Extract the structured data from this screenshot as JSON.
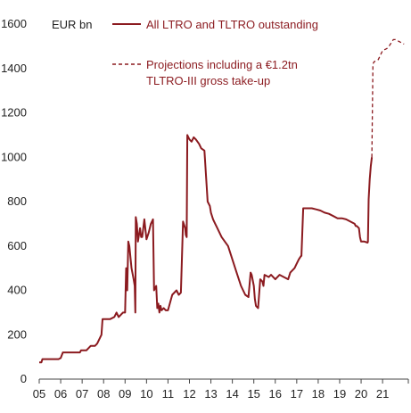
{
  "chart_data": {
    "type": "line",
    "ylabel": "EUR bn",
    "ylim": [
      0,
      1600
    ],
    "yticks": [
      0,
      200,
      400,
      600,
      800,
      1000,
      1200,
      1400,
      1600
    ],
    "xticks": [
      "05",
      "06",
      "07",
      "08",
      "09",
      "10",
      "11",
      "12",
      "13",
      "14",
      "15",
      "16",
      "17",
      "18",
      "19",
      "20",
      "21"
    ],
    "xlim": [
      2005,
      2022.2
    ],
    "grid": false,
    "legend_position": "top",
    "colors": {
      "series": "#8b1a1f",
      "axis": "#444444"
    },
    "series": [
      {
        "name": "All LTRO and TLTRO outstanding",
        "style": "solid",
        "x": [
          2005.0,
          2005.1,
          2005.15,
          2005.3,
          2005.35,
          2005.5,
          2005.7,
          2005.9,
          2006.0,
          2006.1,
          2006.3,
          2006.5,
          2006.7,
          2006.9,
          2006.95,
          2007.2,
          2007.4,
          2007.5,
          2007.6,
          2007.7,
          2007.9,
          2007.95,
          2008.1,
          2008.3,
          2008.5,
          2008.6,
          2008.7,
          2008.9,
          2008.93,
          2009.0,
          2009.05,
          2009.1,
          2009.15,
          2009.2,
          2009.3,
          2009.4,
          2009.45,
          2009.48,
          2009.5,
          2009.55,
          2009.6,
          2009.7,
          2009.75,
          2009.8,
          2009.9,
          2010.0,
          2010.1,
          2010.2,
          2010.3,
          2010.35,
          2010.4,
          2010.45,
          2010.5,
          2010.55,
          2010.6,
          2010.65,
          2010.7,
          2010.8,
          2010.9,
          2011.0,
          2011.2,
          2011.4,
          2011.5,
          2011.6,
          2011.7,
          2011.8,
          2011.83,
          2011.87,
          2011.9,
          2011.95,
          2012.0,
          2012.1,
          2012.2,
          2012.3,
          2012.45,
          2012.55,
          2012.7,
          2012.85,
          2012.95,
          2013.0,
          2013.1,
          2013.2,
          2013.3,
          2013.5,
          2013.8,
          2014.0,
          2014.2,
          2014.4,
          2014.6,
          2014.75,
          2014.85,
          2014.9,
          2015.0,
          2015.05,
          2015.1,
          2015.2,
          2015.3,
          2015.4,
          2015.45,
          2015.5,
          2015.7,
          2015.8,
          2016.0,
          2016.2,
          2016.4,
          2016.6,
          2016.7,
          2016.8,
          2016.9,
          2017.0,
          2017.1,
          2017.2,
          2017.22,
          2017.3,
          2017.5,
          2017.7,
          2017.9,
          2018.1,
          2018.3,
          2018.5,
          2018.7,
          2018.9,
          2019.1,
          2019.3,
          2019.5,
          2019.7,
          2019.75,
          2019.8,
          2019.9,
          2019.95,
          2020.0,
          2020.15,
          2020.3,
          2020.32,
          2020.35,
          2020.4,
          2020.45,
          2020.5
        ],
        "y": [
          75,
          75,
          90,
          90,
          90,
          90,
          90,
          90,
          95,
          120,
          120,
          120,
          120,
          120,
          130,
          130,
          150,
          150,
          150,
          160,
          200,
          270,
          270,
          270,
          280,
          300,
          280,
          300,
          300,
          300,
          500,
          400,
          620,
          600,
          500,
          450,
          420,
          300,
          730,
          700,
          620,
          680,
          640,
          640,
          720,
          630,
          660,
          700,
          720,
          400,
          410,
          420,
          320,
          340,
          300,
          330,
          310,
          320,
          310,
          310,
          380,
          400,
          380,
          390,
          710,
          680,
          650,
          640,
          1100,
          1090,
          1080,
          1070,
          1090,
          1080,
          1060,
          1040,
          1030,
          800,
          780,
          750,
          720,
          700,
          680,
          640,
          600,
          540,
          480,
          420,
          380,
          370,
          480,
          470,
          420,
          360,
          330,
          320,
          450,
          440,
          420,
          470,
          460,
          470,
          450,
          470,
          460,
          450,
          480,
          490,
          500,
          520,
          540,
          555,
          555,
          770,
          770,
          770,
          765,
          760,
          750,
          745,
          735,
          725,
          725,
          720,
          710,
          700,
          690,
          690,
          680,
          640,
          620,
          620,
          615,
          620,
          810,
          900,
          960,
          1000
        ],
        "line_path_x": [],
        "line_path_y": []
      },
      {
        "name": "Projections including a €1.2tn TLTRO-III gross take-up",
        "style": "dashed",
        "x": [
          2020.5,
          2020.55,
          2020.6,
          2020.8,
          2021.0,
          2021.2,
          2021.3,
          2021.5,
          2021.6,
          2021.8,
          2022.0
        ],
        "y": [
          1000,
          1420,
          1430,
          1440,
          1480,
          1490,
          1500,
          1530,
          1530,
          1520,
          1510
        ]
      }
    ]
  }
}
